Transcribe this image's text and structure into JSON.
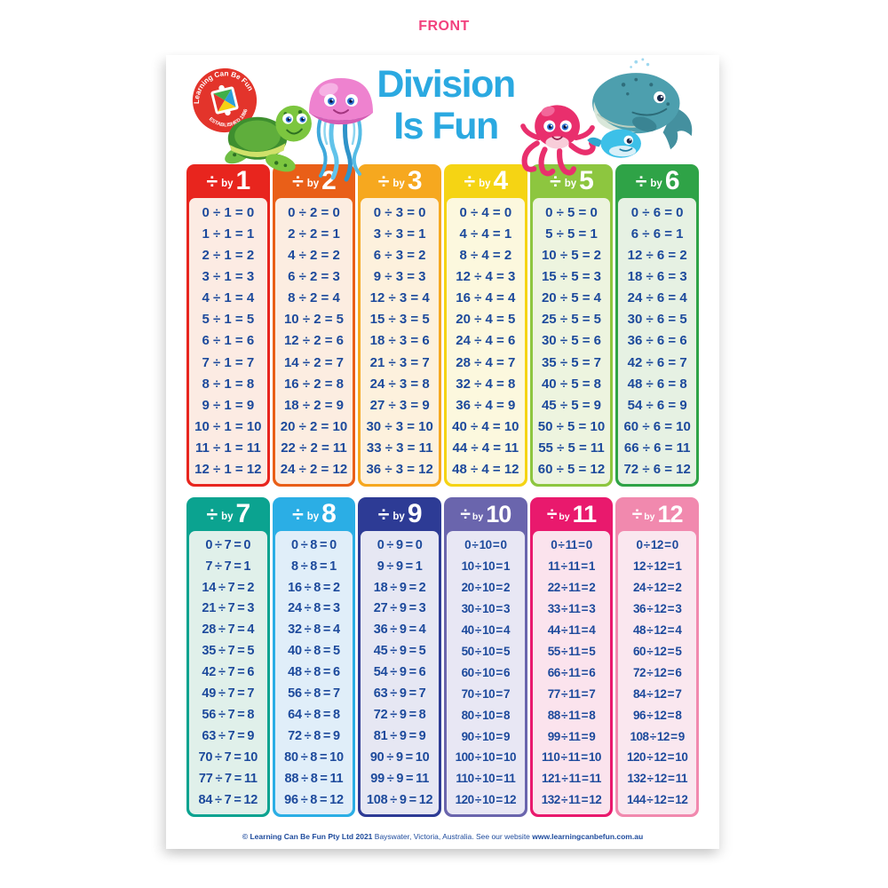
{
  "front_label": "FRONT",
  "title": {
    "line1": "Division",
    "line2": "Is Fun",
    "color": "#2BA9E1"
  },
  "logo": {
    "arc_top": "Learning Can Be Fun",
    "arc_bottom": "ESTABLISHED 1986",
    "bg_color": "#E3342B"
  },
  "creatures": [
    "turtle-icon",
    "jellyfish-icon",
    "octopus-icon",
    "whale-icon"
  ],
  "header_symbol": "÷",
  "by_label": "by",
  "text_color": "#1D4A9C",
  "columns": [
    {
      "divisor": "1",
      "main": "#E8251E",
      "body": "#FCEBE3",
      "equations": [
        "0 ÷ 1 = 0",
        "1 ÷ 1 = 1",
        "2 ÷ 1 = 2",
        "3 ÷ 1 = 3",
        "4 ÷ 1 = 4",
        "5 ÷ 1 = 5",
        "6 ÷ 1 = 6",
        "7 ÷ 1 = 7",
        "8 ÷ 1 = 8",
        "9 ÷ 1 = 9",
        "10 ÷ 1 = 10",
        "11 ÷ 1 = 11",
        "12 ÷ 1 = 12"
      ]
    },
    {
      "divisor": "2",
      "main": "#E95F18",
      "body": "#FCEDE1",
      "equations": [
        "0 ÷ 2 = 0",
        "2 ÷ 2 = 1",
        "4 ÷ 2 = 2",
        "6 ÷ 2 = 3",
        "8 ÷ 2 = 4",
        "10 ÷ 2 = 5",
        "12 ÷ 2 = 6",
        "14 ÷ 2 = 7",
        "16 ÷ 2 = 8",
        "18 ÷ 2 = 9",
        "20 ÷ 2 = 10",
        "22 ÷ 2 = 11",
        "24 ÷ 2 = 12"
      ]
    },
    {
      "divisor": "3",
      "main": "#F6A81F",
      "body": "#FDF1DD",
      "equations": [
        "0 ÷ 3 = 0",
        "3 ÷ 3 = 1",
        "6 ÷ 3 = 2",
        "9 ÷ 3 = 3",
        "12 ÷ 3 = 4",
        "15 ÷ 3 = 5",
        "18 ÷ 3 = 6",
        "21 ÷ 3 = 7",
        "24 ÷ 3 = 8",
        "27 ÷ 3 = 9",
        "30 ÷ 3 = 10",
        "33 ÷ 3 = 11",
        "36 ÷ 3 = 12"
      ]
    },
    {
      "divisor": "4",
      "main": "#F5D414",
      "body": "#FCF8DE",
      "equations": [
        "0 ÷ 4 = 0",
        "4 ÷ 4 = 1",
        "8 ÷ 4 = 2",
        "12 ÷ 4 = 3",
        "16 ÷ 4 = 4",
        "20 ÷ 4 = 5",
        "24 ÷ 4 = 6",
        "28 ÷ 4 = 7",
        "32 ÷ 4 = 8",
        "36 ÷ 4 = 9",
        "40 ÷ 4 = 10",
        "44 ÷ 4 = 11",
        "48 ÷ 4 = 12"
      ]
    },
    {
      "divisor": "5",
      "main": "#8DC63F",
      "body": "#EDF4DF",
      "equations": [
        "0 ÷ 5 = 0",
        "5 ÷ 5 = 1",
        "10 ÷ 5 = 2",
        "15 ÷ 5 = 3",
        "20 ÷ 5 = 4",
        "25 ÷ 5 = 5",
        "30 ÷ 5 = 6",
        "35 ÷ 5 = 7",
        "40 ÷ 5 = 8",
        "45 ÷ 5 = 9",
        "50 ÷ 5 = 10",
        "55 ÷ 5 = 11",
        "60 ÷ 5 = 12"
      ]
    },
    {
      "divisor": "6",
      "main": "#2FA347",
      "body": "#E6F1E3",
      "equations": [
        "0 ÷ 6 = 0",
        "6 ÷ 6 = 1",
        "12 ÷ 6 = 2",
        "18 ÷ 6 = 3",
        "24 ÷ 6 = 4",
        "30 ÷ 6 = 5",
        "36 ÷ 6 = 6",
        "42 ÷ 6 = 7",
        "48 ÷ 6 = 8",
        "54 ÷ 6 = 9",
        "60 ÷ 6 = 10",
        "66 ÷ 6 = 11",
        "72 ÷ 6 = 12"
      ]
    },
    {
      "divisor": "7",
      "main": "#0BA390",
      "body": "#E0F0EA",
      "equations": [
        "0 ÷ 7 = 0",
        "7 ÷ 7 = 1",
        "14 ÷ 7 = 2",
        "21 ÷ 7 = 3",
        "28 ÷ 7 = 4",
        "35 ÷ 7 = 5",
        "42 ÷ 7 = 6",
        "49 ÷ 7 = 7",
        "56 ÷ 7 = 8",
        "63 ÷ 7 = 9",
        "70 ÷ 7 = 10",
        "77 ÷ 7 = 11",
        "84 ÷ 7 = 12"
      ]
    },
    {
      "divisor": "8",
      "main": "#2BAEE5",
      "body": "#E0EEF9",
      "equations": [
        "0 ÷ 8 = 0",
        "8 ÷ 8 = 1",
        "16 ÷ 8 = 2",
        "24 ÷ 8 = 3",
        "32 ÷ 8 = 4",
        "40 ÷ 8 = 5",
        "48 ÷ 8 = 6",
        "56 ÷ 8 = 7",
        "64 ÷ 8 = 8",
        "72 ÷ 8 = 9",
        "80 ÷ 8 = 10",
        "88 ÷ 8 = 11",
        "96 ÷ 8 = 12"
      ]
    },
    {
      "divisor": "9",
      "main": "#2D3B95",
      "body": "#E6E7F3",
      "equations": [
        "0 ÷ 9 = 0",
        "9 ÷ 9 = 1",
        "18 ÷ 9 = 2",
        "27 ÷ 9 = 3",
        "36 ÷ 9 = 4",
        "45 ÷ 9 = 5",
        "54 ÷ 9 = 6",
        "63 ÷ 9 = 7",
        "72 ÷ 9 = 8",
        "81 ÷ 9 = 9",
        "90 ÷ 9 = 10",
        "99 ÷ 9 = 11",
        "108 ÷ 9 = 12"
      ]
    },
    {
      "divisor": "10",
      "main": "#6A65AD",
      "body": "#E8E7F4",
      "equations": [
        "0 ÷ 10 = 0",
        "10 ÷ 10 = 1",
        "20 ÷ 10 = 2",
        "30 ÷ 10 = 3",
        "40 ÷ 10 = 4",
        "50 ÷ 10 = 5",
        "60 ÷ 10 = 6",
        "70 ÷ 10 = 7",
        "80 ÷ 10 = 8",
        "90 ÷ 10 = 9",
        "100 ÷ 10 = 10",
        "110 ÷ 10 = 11",
        "120 ÷ 10 = 12"
      ]
    },
    {
      "divisor": "11",
      "main": "#E9196D",
      "body": "#FBE3ED",
      "equations": [
        "0 ÷ 11 = 0",
        "11 ÷ 11 = 1",
        "22 ÷ 11 = 2",
        "33 ÷ 11 = 3",
        "44 ÷ 11 = 4",
        "55 ÷ 11 = 5",
        "66 ÷ 11 = 6",
        "77 ÷ 11 = 7",
        "88 ÷ 11 = 8",
        "99 ÷ 11 = 9",
        "110 ÷ 11 = 10",
        "121 ÷ 11 = 11",
        "132 ÷ 11 = 12"
      ]
    },
    {
      "divisor": "12",
      "main": "#F189AE",
      "body": "#FAE7EF",
      "equations": [
        "0 ÷ 12 = 0",
        "12 ÷ 12 = 1",
        "24 ÷ 12 = 2",
        "36 ÷ 12 = 3",
        "48 ÷ 12 = 4",
        "60 ÷ 12 = 5",
        "72 ÷ 12 = 6",
        "84 ÷ 12 = 7",
        "96 ÷ 12 = 8",
        "108 ÷ 12 = 9",
        "120 ÷ 12 = 10",
        "132 ÷ 12 = 11",
        "144 ÷ 12 = 12"
      ]
    }
  ],
  "footer": {
    "bold1": "© Learning Can Be Fun Pty Ltd 2021",
    "regular": "Bayswater, Victoria, Australia. See our website",
    "bold2": "www.learningcanbefun.com.au"
  }
}
